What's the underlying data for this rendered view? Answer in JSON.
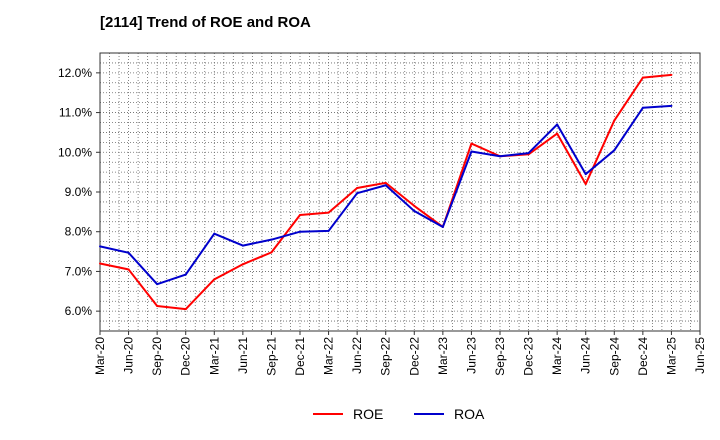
{
  "chart_data": {
    "type": "line",
    "title": "[2114]  Trend of ROE and ROA",
    "xlabel": "",
    "ylabel": "",
    "categories": [
      "Mar-20",
      "Jun-20",
      "Sep-20",
      "Dec-20",
      "Mar-21",
      "Jun-21",
      "Sep-21",
      "Dec-21",
      "Mar-22",
      "Jun-22",
      "Sep-22",
      "Dec-22",
      "Mar-23",
      "Jun-23",
      "Sep-23",
      "Dec-23",
      "Mar-24",
      "Jun-24",
      "Sep-24",
      "Dec-24",
      "Mar-25",
      "Jun-25"
    ],
    "ylim": [
      5.5,
      12.5
    ],
    "yticks": [
      6.0,
      7.0,
      8.0,
      9.0,
      10.0,
      11.0,
      12.0
    ],
    "ytick_labels": [
      "6.0%",
      "7.0%",
      "8.0%",
      "9.0%",
      "10.0%",
      "11.0%",
      "12.0%"
    ],
    "grid": true,
    "legend_position": "bottom-center",
    "series": [
      {
        "name": "ROE",
        "color": "#ff0000",
        "values": [
          7.2,
          7.05,
          6.13,
          6.05,
          6.8,
          7.18,
          7.48,
          8.42,
          8.48,
          9.1,
          9.23,
          8.65,
          8.12,
          10.22,
          9.9,
          9.95,
          10.47,
          9.2,
          10.8,
          11.88,
          11.95,
          null
        ]
      },
      {
        "name": "ROA",
        "color": "#0000cc",
        "values": [
          7.63,
          7.47,
          6.68,
          6.92,
          7.95,
          7.65,
          7.8,
          8.0,
          8.02,
          8.97,
          9.17,
          8.52,
          8.12,
          10.02,
          9.9,
          9.98,
          10.7,
          9.45,
          10.05,
          11.12,
          11.17,
          null
        ]
      }
    ]
  }
}
